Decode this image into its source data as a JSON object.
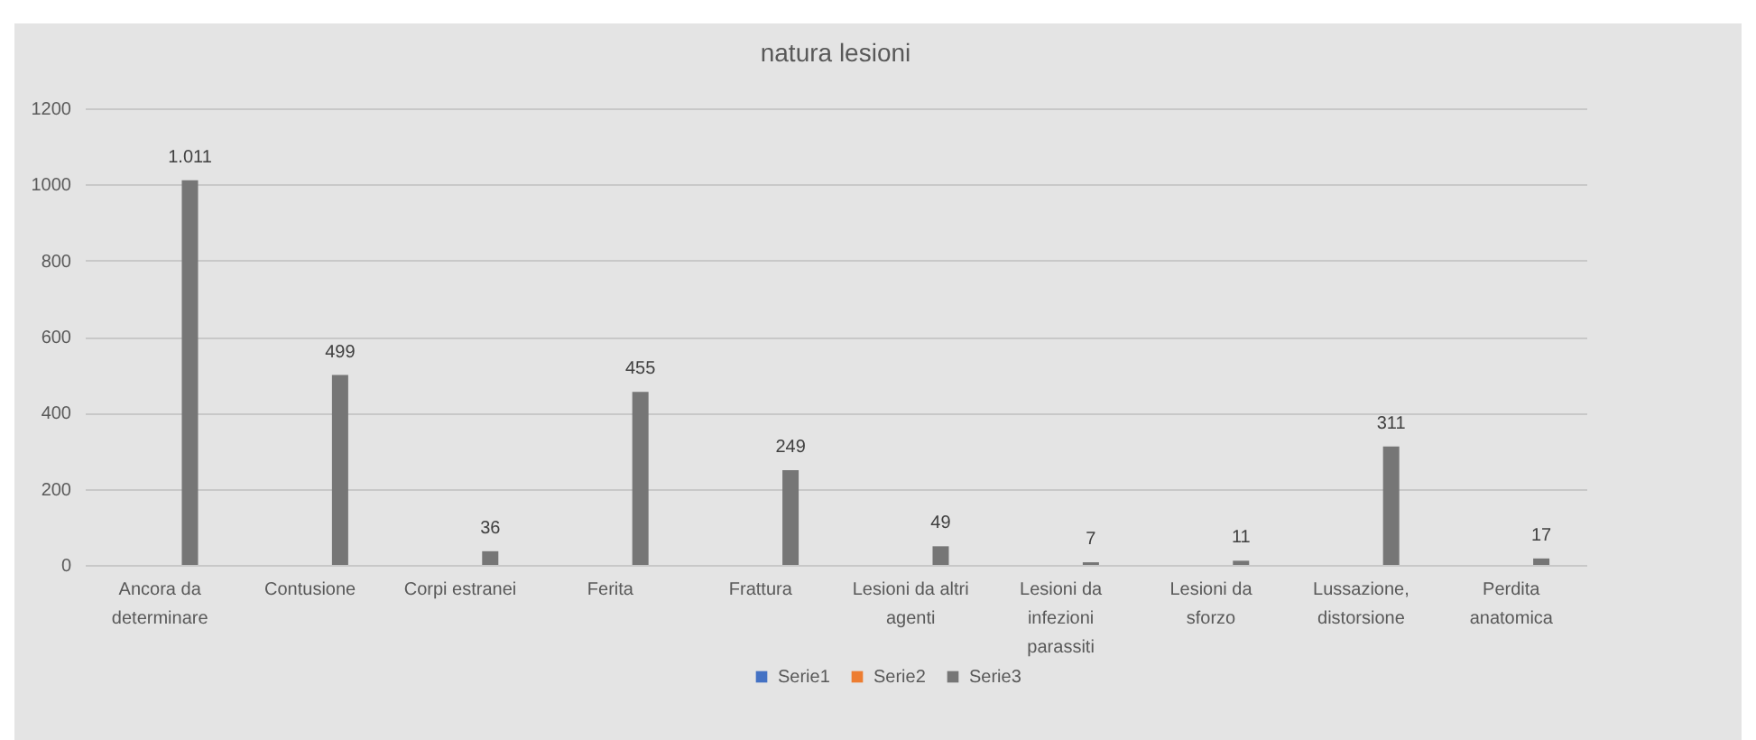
{
  "chart_data": {
    "type": "bar",
    "title": "natura lesioni",
    "categories": [
      "Ancora da determinare",
      "Contusione",
      "Corpi estranei",
      "Ferita",
      "Frattura",
      "Lesioni da altri agenti",
      "Lesioni da infezioni parassiti",
      "Lesioni da sforzo",
      "Lussazione, distorsione",
      "Perdita anatomica"
    ],
    "series": [
      {
        "name": "Serie1",
        "color": "#4472c4",
        "values": [
          null,
          null,
          null,
          null,
          null,
          null,
          null,
          null,
          null,
          null
        ]
      },
      {
        "name": "Serie2",
        "color": "#ed7d31",
        "values": [
          null,
          null,
          null,
          null,
          null,
          null,
          null,
          null,
          null,
          null
        ]
      },
      {
        "name": "Serie3",
        "color": "#767676",
        "values": [
          1011,
          499,
          36,
          455,
          249,
          49,
          7,
          11,
          311,
          17
        ],
        "value_labels": [
          "1.011",
          "499",
          "36",
          "455",
          "249",
          "49",
          "7",
          "11",
          "311",
          "17"
        ]
      }
    ],
    "ylim": [
      0,
      1200
    ],
    "yticks": [
      0,
      200,
      400,
      600,
      800,
      1000,
      1200
    ],
    "grid": "y",
    "legend": "bottom"
  }
}
